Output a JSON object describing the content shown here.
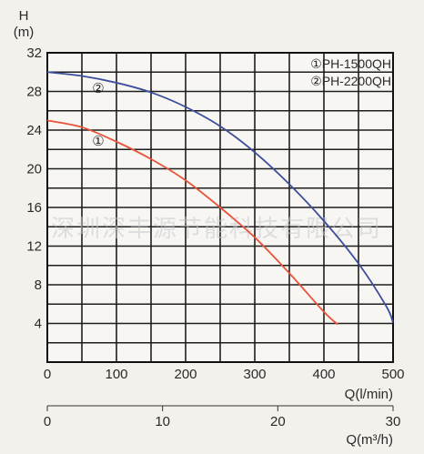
{
  "chart_data": {
    "type": "line",
    "y_axis": {
      "label": "H",
      "unit": "(m)",
      "ylim": [
        0,
        32
      ],
      "ticks": [
        4,
        8,
        12,
        16,
        20,
        24,
        28,
        32
      ],
      "grid_step": 2
    },
    "x_axis": {
      "label": "Q(l/min)",
      "xlim": [
        0,
        500
      ],
      "ticks": [
        0,
        100,
        200,
        300,
        400,
        500
      ],
      "grid_step": 50
    },
    "x_axis_secondary": {
      "label": "Q(m³/h)",
      "xlim": [
        0,
        30
      ],
      "ticks": [
        0,
        10,
        20,
        30
      ]
    },
    "grid": true,
    "legend_position": "top-right",
    "series": [
      {
        "name": "PH-1500QH",
        "tag": "①",
        "color": "#e8533a",
        "x": [
          0,
          50,
          100,
          150,
          200,
          250,
          300,
          350,
          400,
          420
        ],
        "y": [
          25,
          24.3,
          22.8,
          21,
          18.8,
          16,
          12.9,
          9.2,
          5.2,
          3.9
        ]
      },
      {
        "name": "PH-2200QH",
        "tag": "②",
        "color": "#3d4f9a",
        "x": [
          0,
          50,
          100,
          150,
          200,
          250,
          300,
          350,
          400,
          450,
          490,
          500
        ],
        "y": [
          30,
          29.6,
          28.9,
          27.9,
          26.4,
          24.4,
          21.7,
          18.4,
          14.6,
          10.2,
          5.8,
          4.1
        ]
      }
    ],
    "legend": [
      {
        "tag": "①",
        "name": "PH-1500QH"
      },
      {
        "tag": "②",
        "name": "PH-2200QH"
      }
    ],
    "watermark": "深圳深丰源节能科技有限公司"
  }
}
